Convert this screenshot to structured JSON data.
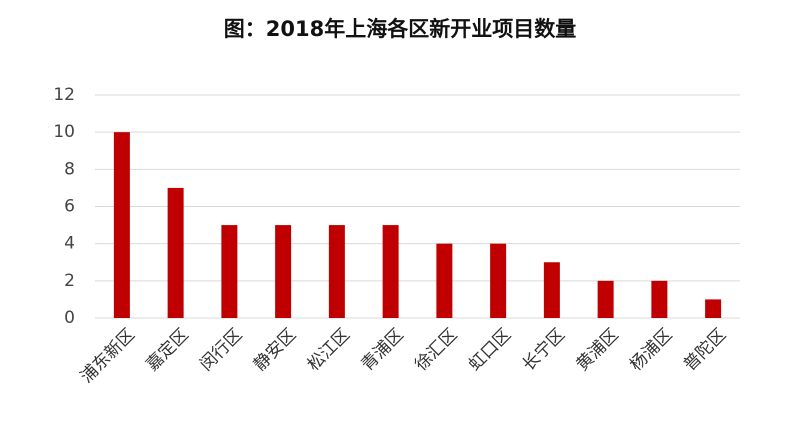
{
  "chart_data": {
    "type": "bar",
    "title": "图：2018年上海各区新开业项目数量",
    "categories": [
      "浦东新区",
      "嘉定区",
      "闵行区",
      "静安区",
      "松江区",
      "青浦区",
      "徐汇区",
      "虹口区",
      "长宁区",
      "黄浦区",
      "杨浦区",
      "普陀区"
    ],
    "values": [
      10,
      7,
      5,
      5,
      5,
      5,
      4,
      4,
      3,
      2,
      2,
      1
    ],
    "color": "#c00000",
    "ylim": [
      0,
      12
    ],
    "yticks": [
      0,
      2,
      4,
      6,
      8,
      10,
      12
    ],
    "grid": true
  }
}
